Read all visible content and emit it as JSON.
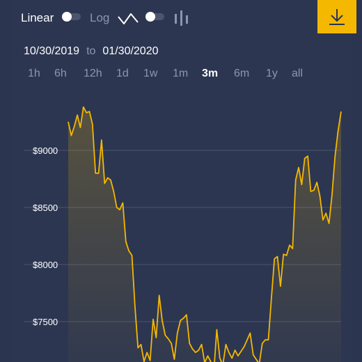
{
  "toolbar": {
    "linear_label": "Linear",
    "log_label": "Log",
    "linear_active": true,
    "accent_color": "#f5b800"
  },
  "date_range": {
    "start": "10/30/2019",
    "separator": "to",
    "end": "01/30/2020"
  },
  "ranges": [
    {
      "label": "1h",
      "active": false
    },
    {
      "label": "6h",
      "active": false
    },
    {
      "label": "12h",
      "active": false
    },
    {
      "label": "1d",
      "active": false
    },
    {
      "label": "1w",
      "active": false
    },
    {
      "label": "1m",
      "active": false
    },
    {
      "label": "3m",
      "active": true
    },
    {
      "label": "6m",
      "active": false
    },
    {
      "label": "1y",
      "active": false
    },
    {
      "label": "all",
      "active": false
    }
  ],
  "chart_data": {
    "type": "area",
    "line_color": "#f5b800",
    "grid": true,
    "y_tick_labels": [
      "$9000",
      "$8500",
      "$8000",
      "$7500"
    ],
    "y_ticks": [
      9000,
      8500,
      8000,
      7500
    ],
    "ylim": [
      7200,
      9550
    ],
    "x_start": "10/30/2019",
    "x_end": "01/30/2020",
    "values": [
      9250,
      9130,
      9210,
      9310,
      9200,
      9380,
      9330,
      9340,
      9230,
      8800,
      8800,
      9090,
      8710,
      8760,
      8740,
      8640,
      8500,
      8480,
      8540,
      8200,
      8120,
      8080,
      7640,
      7270,
      7300,
      7150,
      7230,
      7160,
      7520,
      7360,
      7730,
      7510,
      7380,
      7350,
      7310,
      7170,
      7400,
      7510,
      7530,
      7560,
      7310,
      7260,
      7230,
      7250,
      7300,
      7140,
      7200,
      7150,
      7060,
      7430,
      7180,
      7120,
      7300,
      7230,
      7180,
      7250,
      7200,
      7240,
      7280,
      7340,
      7400,
      7210,
      7170,
      7130,
      7310,
      7340,
      7340,
      7700,
      8050,
      8070,
      7810,
      8090,
      8080,
      8170,
      8140,
      8740,
      8850,
      8700,
      8930,
      8950,
      8640,
      8650,
      8720,
      8600,
      8390,
      8450,
      8360,
      8610,
      8950,
      9170,
      9340
    ]
  }
}
